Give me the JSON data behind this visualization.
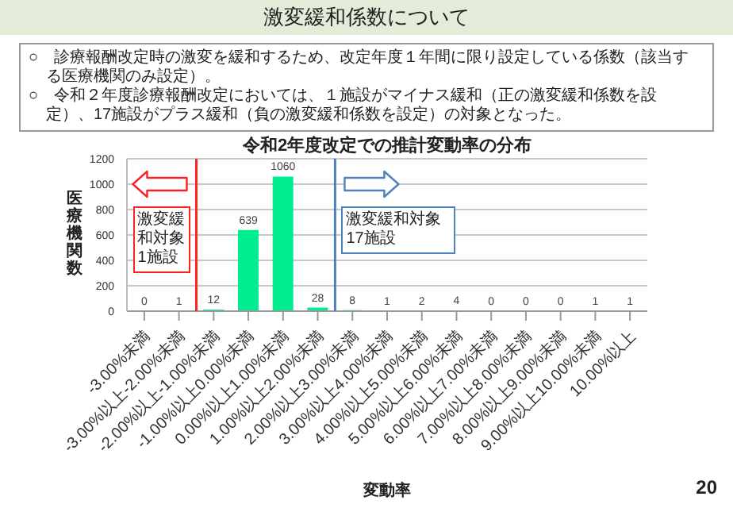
{
  "chart_data": {
    "type": "bar",
    "title": "激変緩和係数について",
    "subtitle": "令和2年度改定での推計変動率の分布",
    "annotations": [
      "○　診療報酬改定時の激変を緩和するため、改定年度１年間に限り設定している係数（該当する医療機関のみ設定）。",
      "○　令和２年度診療報酬改定においては、１施設がマイナス緩和（正の激変緩和係数を設定）、17施設がプラス緩和（負の激変緩和係数を設定）の対象となった。",
      "20"
    ],
    "ref_lines": [
      {
        "axis": "x",
        "value": "-3.00%以上-2.00%未満",
        "label": "激変緩和対象1施設",
        "color": "#ff2020"
      },
      {
        "axis": "x",
        "value": "2.00%以上3.00%未満",
        "label": "激変緩和対象17施設",
        "color": "#4f81bd"
      }
    ],
    "xlabel": "変動率",
    "ylabel": "医療機関数",
    "categories": [
      "-3.00%未満",
      "-3.00%以上-2.00%未満",
      "-2.00%以上-1.00%未満",
      "-1.00%以上0.00%未満",
      "0.00%以上1.00%未満",
      "1.00%以上2.00%未満",
      "2.00%以上3.00%未満",
      "3.00%以上4.00%未満",
      "4.00%以上5.00%未満",
      "5.00%以上6.00%未満",
      "6.00%以上7.00%未満",
      "7.00%以上8.00%未満",
      "8.00%以上9.00%未満",
      "9.00%以上10.00%未満",
      "10.00%以上"
    ],
    "values": [
      0,
      1,
      12,
      639,
      1060,
      28,
      8,
      1,
      2,
      4,
      0,
      0,
      0,
      1,
      1
    ],
    "color": "#00ee90",
    "ylim": [
      0,
      1200
    ],
    "yticks": [
      0,
      200,
      400,
      600,
      800,
      1000,
      1200
    ],
    "grid": "y",
    "data_labels": true
  }
}
